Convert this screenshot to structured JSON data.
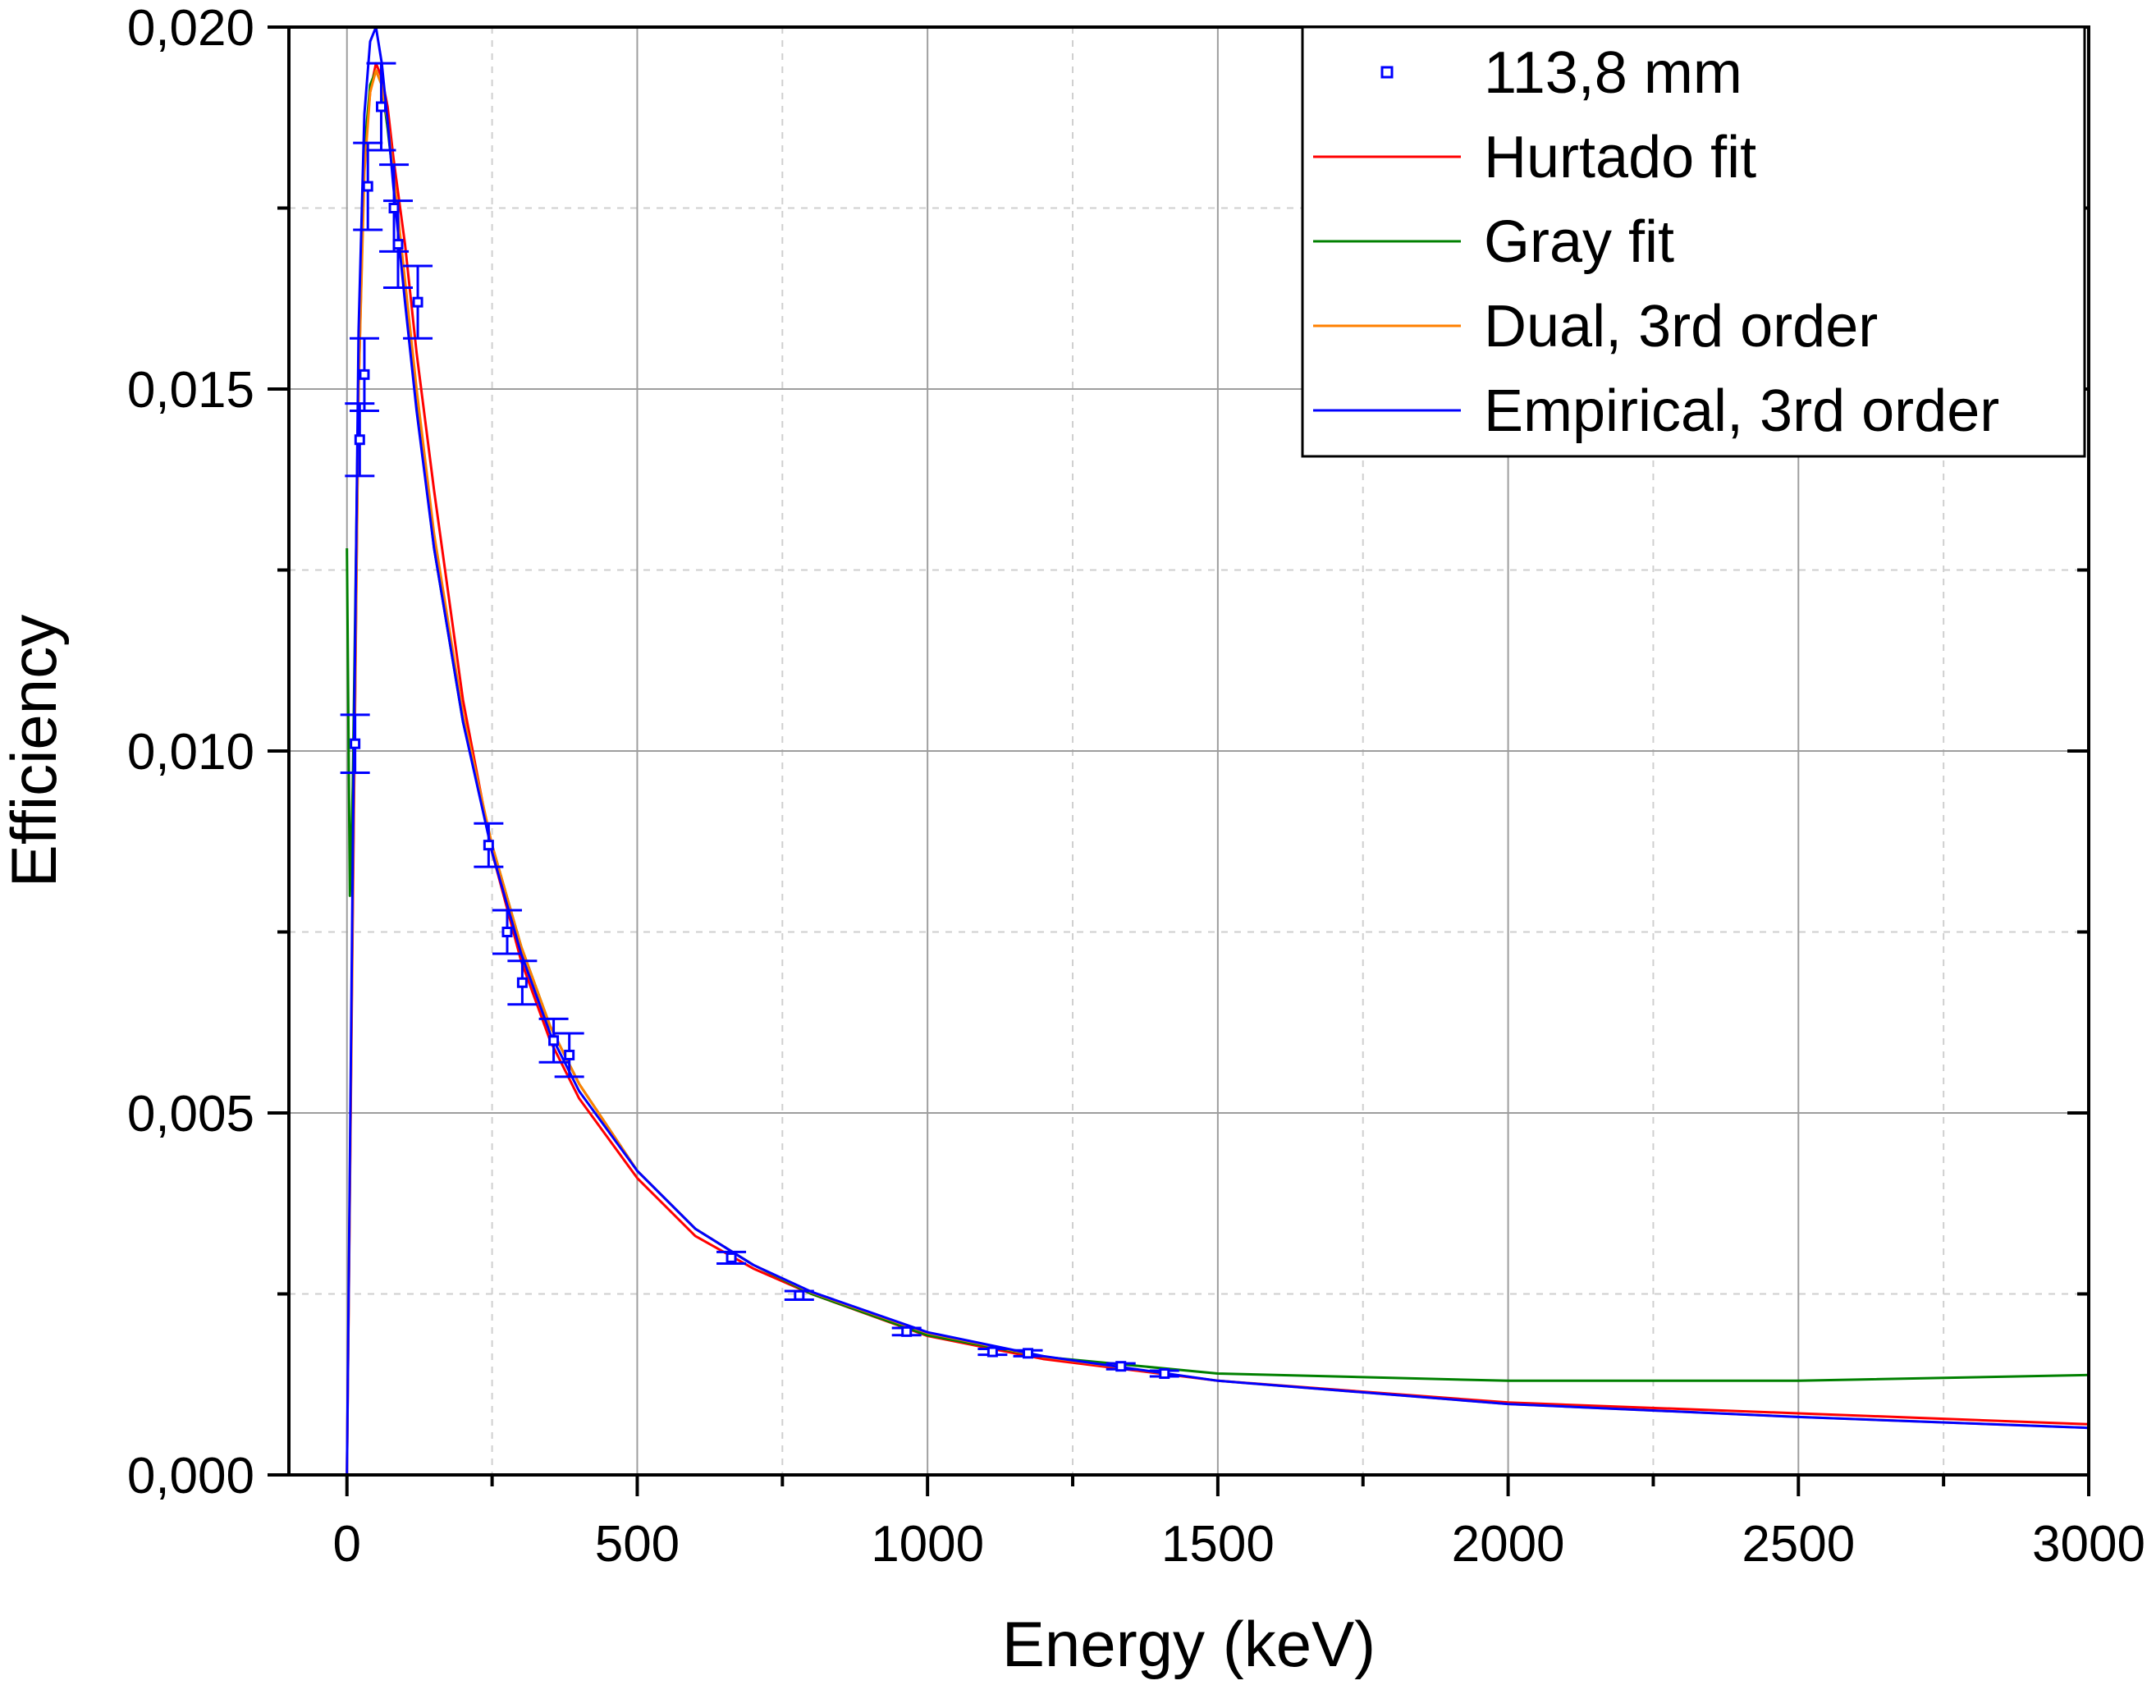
{
  "chart_data": {
    "type": "scatter",
    "xlabel": "Energy (keV)",
    "ylabel": "Efficiency",
    "xlim": [
      -100,
      3000
    ],
    "ylim": [
      0,
      0.02
    ],
    "x_ticks": [
      0,
      500,
      1000,
      1500,
      2000,
      2500,
      3000
    ],
    "x_tick_labels": [
      "0",
      "500",
      "1000",
      "1500",
      "2000",
      "2500",
      "3000"
    ],
    "y_ticks": [
      0,
      0.005,
      0.01,
      0.015,
      0.02
    ],
    "y_tick_labels": [
      "0,000",
      "0,005",
      "0,010",
      "0,015",
      "0,020"
    ],
    "x_minor_step": 250,
    "y_minor_step": 0.0025,
    "grid": true,
    "legend_position": "top-right",
    "colors": {
      "points": "#0000ff",
      "hurtado": "#ff0000",
      "gray": "#008000",
      "dual": "#ff8000",
      "empirical": "#0000ff"
    },
    "points": {
      "name": "113,8 mm",
      "x": [
        14,
        22,
        30,
        36,
        59,
        81,
        88,
        122,
        244,
        276,
        302,
        356,
        383,
        662,
        779,
        964,
        1112,
        1173,
        1333,
        1408
      ],
      "y": [
        0.0101,
        0.0143,
        0.0152,
        0.0178,
        0.0189,
        0.0175,
        0.017,
        0.0162,
        0.0087,
        0.0075,
        0.0068,
        0.006,
        0.0058,
        0.003,
        0.00248,
        0.00198,
        0.0017,
        0.00168,
        0.0015,
        0.0014
      ],
      "y_err": [
        0.0004,
        0.0005,
        0.0005,
        0.0006,
        0.0006,
        0.0006,
        0.0006,
        0.0005,
        0.0003,
        0.0003,
        0.0003,
        0.0003,
        0.0003,
        8e-05,
        6e-05,
        5e-05,
        4e-05,
        4e-05,
        4e-05,
        4e-05
      ]
    },
    "series": [
      {
        "name": "Hurtado fit",
        "x": [
          0,
          10,
          20,
          30,
          40,
          50,
          60,
          70,
          80,
          100,
          120,
          150,
          200,
          250,
          300,
          350,
          400,
          500,
          600,
          700,
          800,
          1000,
          1200,
          1500,
          2000,
          2500,
          3000
        ],
        "y": [
          0,
          0.0077,
          0.015,
          0.0182,
          0.0191,
          0.0195,
          0.0193,
          0.0189,
          0.0182,
          0.017,
          0.0155,
          0.0136,
          0.0107,
          0.0086,
          0.0071,
          0.006,
          0.0052,
          0.0041,
          0.0033,
          0.00285,
          0.0025,
          0.00192,
          0.0016,
          0.0013,
          0.001,
          0.00085,
          0.0007
        ]
      },
      {
        "name": "Gray fit",
        "x": [
          0,
          5,
          10,
          20,
          30,
          40,
          50,
          60,
          70,
          80,
          100,
          120,
          150,
          200,
          250,
          300,
          350,
          400,
          500,
          600,
          700,
          800,
          1000,
          1200,
          1500,
          2000,
          2500,
          3000
        ],
        "y": [
          0.0128,
          0.008,
          0.0095,
          0.0152,
          0.0183,
          0.0192,
          0.0194,
          0.0192,
          0.0186,
          0.0179,
          0.0163,
          0.0148,
          0.0128,
          0.0104,
          0.0087,
          0.0073,
          0.0062,
          0.0054,
          0.0042,
          0.0034,
          0.0029,
          0.0025,
          0.00193,
          0.00163,
          0.0014,
          0.0013,
          0.0013,
          0.00138
        ]
      },
      {
        "name": "Dual, 3rd order",
        "x": [
          0,
          10,
          20,
          30,
          40,
          50,
          60,
          70,
          80,
          100,
          120,
          150,
          200,
          250,
          300,
          350,
          400,
          500,
          600,
          700,
          800,
          1000,
          1200,
          1500,
          2000,
          2500,
          3000
        ],
        "y": [
          0,
          0.008,
          0.015,
          0.018,
          0.0191,
          0.0194,
          0.0192,
          0.0187,
          0.018,
          0.0165,
          0.015,
          0.013,
          0.0105,
          0.0087,
          0.0073,
          0.0062,
          0.0054,
          0.0042,
          0.0034,
          0.0029,
          0.00252,
          0.00196,
          0.00163,
          0.0013,
          0.00098,
          0.0008,
          0.00065
        ]
      },
      {
        "name": "Empirical, 3rd order",
        "x": [
          0,
          10,
          20,
          30,
          40,
          50,
          60,
          70,
          80,
          100,
          120,
          150,
          200,
          250,
          300,
          350,
          400,
          500,
          600,
          700,
          800,
          1000,
          1200,
          1500,
          2000,
          2500,
          3000
        ],
        "y": [
          0,
          0.0085,
          0.0158,
          0.0188,
          0.0198,
          0.02,
          0.0195,
          0.0187,
          0.0178,
          0.0162,
          0.0147,
          0.0128,
          0.0104,
          0.0086,
          0.0072,
          0.0061,
          0.0053,
          0.0042,
          0.0034,
          0.0029,
          0.00253,
          0.00197,
          0.00164,
          0.0013,
          0.00098,
          0.0008,
          0.00065
        ]
      }
    ]
  }
}
